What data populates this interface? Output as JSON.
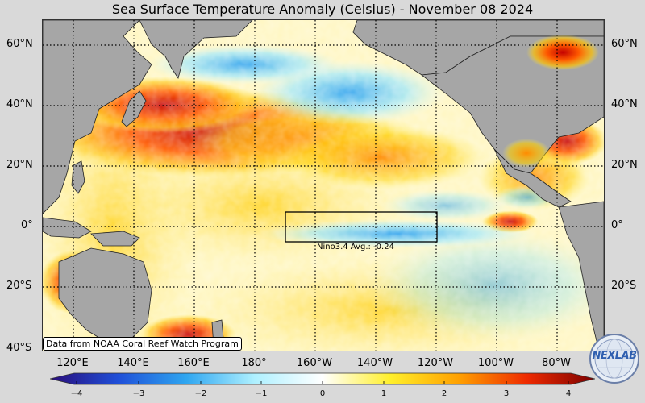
{
  "title": "Sea Surface Temperature Anomaly (Celsius) - November 08 2024",
  "lat_labels": [
    "60°N",
    "40°N",
    "20°N",
    "0°",
    "20°S",
    "40°S"
  ],
  "lon_labels": [
    "120°E",
    "140°E",
    "160°E",
    "180°",
    "160°W",
    "140°W",
    "120°W",
    "100°W",
    "80°W"
  ],
  "nino_label": "Nino3.4 Avg.: -0.24",
  "nino_value": -0.24,
  "credit": "Data from NOAA Coral Reef Watch Program",
  "colorbar": {
    "min": -4,
    "max": 4,
    "ticks": [
      "−4",
      "−3",
      "−2",
      "−1",
      "0",
      "1",
      "2",
      "3",
      "4"
    ],
    "colors": [
      "#2a0d7a",
      "#1f4fd8",
      "#2fa6f0",
      "#aef0ff",
      "#ffffff",
      "#ffef2a",
      "#ffa000",
      "#ee2a00",
      "#7a0000"
    ]
  },
  "logo_text": "NEXLAB",
  "colors": {
    "land": "#a6a6a6",
    "warm": "#e8301a",
    "cool": "#4fc3f7",
    "frame": "#d9d9d9"
  }
}
